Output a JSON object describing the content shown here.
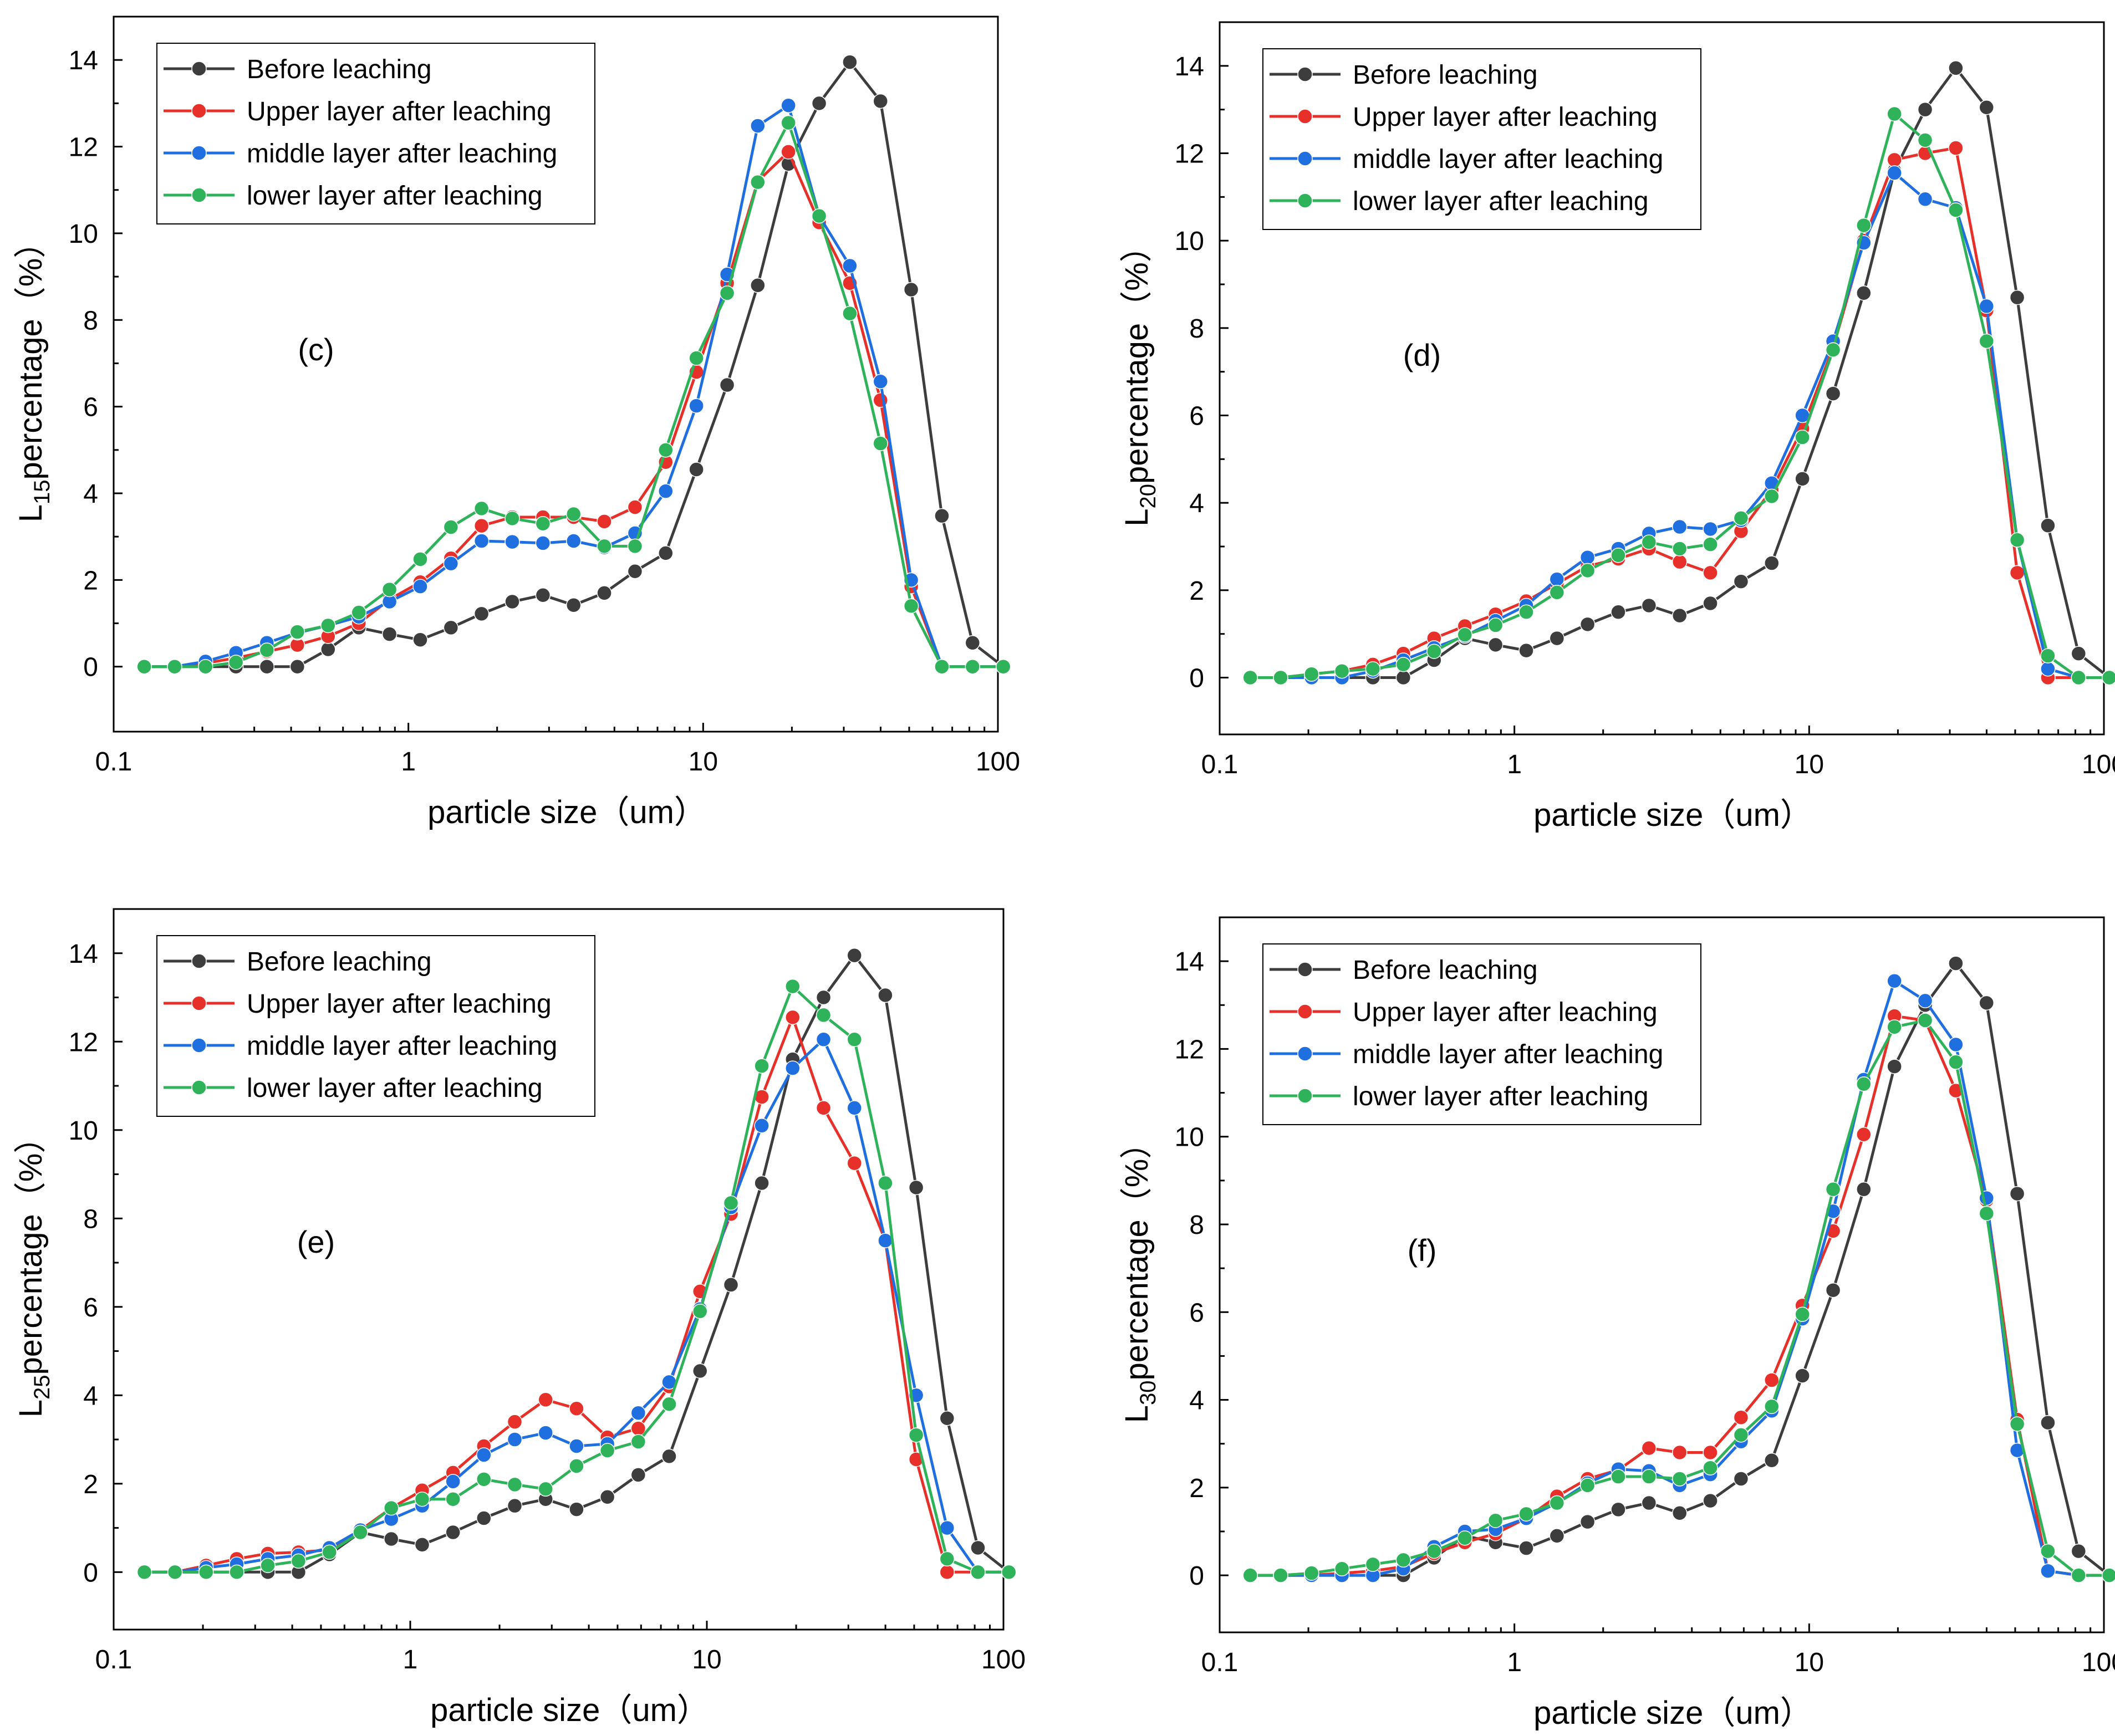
{
  "figure": {
    "colors": {
      "before": "#3d3d3d",
      "upper": "#e8302a",
      "middle": "#1f6fe0",
      "lower": "#2fb35a"
    }
  },
  "chart_data": [
    {
      "type": "line",
      "panel_label": "(c)",
      "ylabel_prefix": "L",
      "ylabel_sub": "15",
      "ylabel_suffix": "percentage（%）",
      "xlabel": "particle size（um）",
      "xscale": "log",
      "xlim": [
        0.1,
        100
      ],
      "ylim": [
        -1.5,
        15
      ],
      "xticks": [
        0.1,
        1,
        10,
        100
      ],
      "xtick_labels": [
        "0.1",
        "1",
        "10",
        "100"
      ],
      "yticks": [
        0,
        2,
        4,
        6,
        8,
        10,
        12,
        14
      ],
      "ytick_labels": [
        "0",
        "2",
        "4",
        "6",
        "8",
        "10",
        "12",
        "14"
      ],
      "legend_position": "top-left",
      "x": [
        0.127,
        0.161,
        0.205,
        0.26,
        0.331,
        0.42,
        0.534,
        0.679,
        0.863,
        1.097,
        1.394,
        1.771,
        2.251,
        2.861,
        3.636,
        4.621,
        5.873,
        7.464,
        9.486,
        12.06,
        15.32,
        19.47,
        24.75,
        31.45,
        39.97,
        50.8,
        64.56,
        82.04,
        104.3
      ],
      "series": [
        {
          "name": "Before leaching",
          "color_key": "before",
          "values": [
            0,
            0,
            0,
            0,
            0,
            0,
            0.4,
            0.9,
            0.75,
            0.62,
            0.9,
            1.22,
            1.5,
            1.65,
            1.42,
            1.7,
            2.2,
            2.62,
            4.55,
            6.5,
            8.8,
            11.6,
            13.0,
            13.95,
            13.05,
            8.7,
            3.48,
            0.55,
            0
          ]
        },
        {
          "name": "Upper layer after leaching",
          "color_key": "upper",
          "values": [
            0,
            0,
            0.08,
            0.2,
            0.35,
            0.5,
            0.7,
            1.0,
            1.55,
            1.95,
            2.5,
            3.25,
            3.45,
            3.45,
            3.45,
            3.35,
            3.68,
            4.72,
            6.8,
            8.85,
            11.2,
            11.88,
            10.25,
            8.85,
            6.15,
            1.85,
            0,
            0,
            0
          ]
        },
        {
          "name": "middle layer after leaching",
          "color_key": "middle",
          "values": [
            0,
            0,
            0.12,
            0.32,
            0.55,
            0.78,
            0.95,
            1.15,
            1.5,
            1.85,
            2.38,
            2.9,
            2.88,
            2.85,
            2.9,
            2.75,
            3.08,
            4.05,
            6.02,
            9.05,
            12.48,
            12.95,
            10.4,
            9.25,
            6.58,
            2.0,
            0,
            0,
            0
          ]
        },
        {
          "name": "lower layer after leaching",
          "color_key": "lower",
          "values": [
            0,
            0,
            0,
            0.1,
            0.38,
            0.8,
            0.95,
            1.25,
            1.78,
            2.48,
            3.22,
            3.65,
            3.42,
            3.3,
            3.52,
            2.78,
            2.78,
            5.0,
            7.12,
            8.62,
            11.18,
            12.55,
            10.4,
            8.15,
            5.15,
            1.4,
            0,
            0,
            0
          ]
        }
      ]
    },
    {
      "type": "line",
      "panel_label": "(d)",
      "ylabel_prefix": "L",
      "ylabel_sub": "20",
      "ylabel_suffix": "percentage（%）",
      "xlabel": "particle size（um）",
      "xscale": "log",
      "xlim": [
        0.1,
        100
      ],
      "ylim": [
        -1.3,
        15
      ],
      "xticks": [
        0.1,
        1,
        10,
        100
      ],
      "xtick_labels": [
        "0.1",
        "1",
        "10",
        "100"
      ],
      "yticks": [
        0,
        2,
        4,
        6,
        8,
        10,
        12,
        14
      ],
      "ytick_labels": [
        "0",
        "2",
        "4",
        "6",
        "8",
        "10",
        "12",
        "14"
      ],
      "legend_position": "top-left",
      "x": [
        0.127,
        0.161,
        0.205,
        0.26,
        0.331,
        0.42,
        0.534,
        0.679,
        0.863,
        1.097,
        1.394,
        1.771,
        2.251,
        2.861,
        3.636,
        4.621,
        5.873,
        7.464,
        9.486,
        12.06,
        15.32,
        19.47,
        24.75,
        31.45,
        39.97,
        50.8,
        64.56,
        82.04,
        104.3
      ],
      "series": [
        {
          "name": "Before leaching",
          "color_key": "before",
          "values": [
            0,
            0,
            0,
            0,
            0,
            0,
            0.4,
            0.9,
            0.75,
            0.62,
            0.9,
            1.22,
            1.5,
            1.65,
            1.42,
            1.7,
            2.2,
            2.62,
            4.55,
            6.5,
            8.8,
            11.6,
            13.0,
            13.95,
            13.05,
            8.7,
            3.48,
            0.55,
            0
          ]
        },
        {
          "name": "Upper layer after leaching",
          "color_key": "upper",
          "values": [
            0,
            0,
            0.08,
            0.15,
            0.3,
            0.55,
            0.9,
            1.18,
            1.45,
            1.75,
            2.15,
            2.55,
            2.72,
            2.95,
            2.65,
            2.4,
            3.35,
            4.3,
            5.7,
            7.55,
            10.0,
            11.85,
            12.0,
            12.12,
            8.4,
            2.4,
            0,
            0,
            0
          ]
        },
        {
          "name": "middle layer after leaching",
          "color_key": "middle",
          "values": [
            0,
            0,
            0,
            0,
            0.15,
            0.4,
            0.68,
            0.95,
            1.3,
            1.65,
            2.25,
            2.75,
            2.95,
            3.3,
            3.45,
            3.4,
            3.6,
            4.45,
            6.0,
            7.7,
            9.95,
            11.55,
            10.95,
            10.75,
            8.5,
            3.15,
            0.2,
            0,
            0
          ]
        },
        {
          "name": "lower layer after leaching",
          "color_key": "lower",
          "values": [
            0,
            0,
            0.08,
            0.15,
            0.2,
            0.3,
            0.6,
            0.98,
            1.2,
            1.5,
            1.95,
            2.45,
            2.8,
            3.1,
            2.95,
            3.05,
            3.65,
            4.15,
            5.5,
            7.5,
            10.35,
            12.9,
            12.3,
            10.7,
            7.7,
            3.15,
            0.5,
            0,
            0
          ]
        }
      ]
    },
    {
      "type": "line",
      "panel_label": "(e)",
      "ylabel_prefix": "L",
      "ylabel_sub": "25",
      "ylabel_suffix": "percentage（%）",
      "xlabel": "particle size（um）",
      "xscale": "log",
      "xlim": [
        0.1,
        100
      ],
      "ylim": [
        -1.3,
        15
      ],
      "xticks": [
        0.1,
        1,
        10,
        100
      ],
      "xtick_labels": [
        "0.1",
        "1",
        "10",
        "100"
      ],
      "yticks": [
        0,
        2,
        4,
        6,
        8,
        10,
        12,
        14
      ],
      "ytick_labels": [
        "0",
        "2",
        "4",
        "6",
        "8",
        "10",
        "12",
        "14"
      ],
      "legend_position": "top-left",
      "x": [
        0.127,
        0.161,
        0.205,
        0.26,
        0.331,
        0.42,
        0.534,
        0.679,
        0.863,
        1.097,
        1.394,
        1.771,
        2.251,
        2.861,
        3.636,
        4.621,
        5.873,
        7.464,
        9.486,
        12.06,
        15.32,
        19.47,
        24.75,
        31.45,
        39.97,
        50.8,
        64.56,
        82.04,
        104.3
      ],
      "series": [
        {
          "name": "Before leaching",
          "color_key": "before",
          "values": [
            0,
            0,
            0,
            0,
            0,
            0,
            0.4,
            0.9,
            0.75,
            0.62,
            0.9,
            1.22,
            1.5,
            1.65,
            1.42,
            1.7,
            2.2,
            2.62,
            4.55,
            6.5,
            8.8,
            11.6,
            13.0,
            13.95,
            13.05,
            8.7,
            3.48,
            0.55,
            0
          ]
        },
        {
          "name": "Upper layer after leaching",
          "color_key": "upper",
          "values": [
            0,
            0,
            0.15,
            0.3,
            0.42,
            0.45,
            0.5,
            0.95,
            1.45,
            1.85,
            2.25,
            2.85,
            3.4,
            3.9,
            3.7,
            3.05,
            3.25,
            4.2,
            6.35,
            8.1,
            10.75,
            12.55,
            10.5,
            9.25,
            7.5,
            2.55,
            0,
            0,
            0
          ]
        },
        {
          "name": "middle layer after leaching",
          "color_key": "middle",
          "values": [
            0,
            0,
            0.1,
            0.18,
            0.3,
            0.38,
            0.55,
            0.95,
            1.2,
            1.5,
            2.05,
            2.65,
            3.0,
            3.15,
            2.85,
            2.9,
            3.6,
            4.3,
            5.95,
            8.25,
            10.1,
            11.4,
            12.05,
            10.5,
            7.5,
            4.0,
            1.0,
            0,
            0
          ]
        },
        {
          "name": "lower layer after leaching",
          "color_key": "lower",
          "values": [
            0,
            0,
            0,
            0,
            0.15,
            0.25,
            0.45,
            0.9,
            1.45,
            1.65,
            1.65,
            2.1,
            1.98,
            1.88,
            2.4,
            2.75,
            2.95,
            3.8,
            5.9,
            8.35,
            11.45,
            13.25,
            12.6,
            12.05,
            8.8,
            3.1,
            0.3,
            0,
            0
          ]
        }
      ]
    },
    {
      "type": "line",
      "panel_label": "(f)",
      "ylabel_prefix": "L",
      "ylabel_sub": "30",
      "ylabel_suffix": "percentage（%）",
      "xlabel": "particle size（um）",
      "xscale": "log",
      "xlim": [
        0.1,
        100
      ],
      "ylim": [
        -1.3,
        15
      ],
      "xticks": [
        0.1,
        1,
        10,
        100
      ],
      "xtick_labels": [
        "0.1",
        "1",
        "10",
        "100"
      ],
      "yticks": [
        0,
        2,
        4,
        6,
        8,
        10,
        12,
        14
      ],
      "ytick_labels": [
        "0",
        "2",
        "4",
        "6",
        "8",
        "10",
        "12",
        "14"
      ],
      "legend_position": "top-left",
      "x": [
        0.127,
        0.161,
        0.205,
        0.26,
        0.331,
        0.42,
        0.534,
        0.679,
        0.863,
        1.097,
        1.394,
        1.771,
        2.251,
        2.861,
        3.636,
        4.621,
        5.873,
        7.464,
        9.486,
        12.06,
        15.32,
        19.47,
        24.75,
        31.45,
        39.97,
        50.8,
        64.56,
        82.04,
        104.3
      ],
      "series": [
        {
          "name": "Before leaching",
          "color_key": "before",
          "values": [
            0,
            0,
            0,
            0,
            0,
            0,
            0.4,
            0.9,
            0.75,
            0.62,
            0.9,
            1.22,
            1.5,
            1.65,
            1.42,
            1.7,
            2.2,
            2.62,
            4.55,
            6.5,
            8.8,
            11.6,
            13.0,
            13.95,
            13.05,
            8.7,
            3.48,
            0.55,
            0
          ]
        },
        {
          "name": "Upper layer after leaching",
          "color_key": "upper",
          "values": [
            0,
            0,
            0,
            0.05,
            0.1,
            0.2,
            0.5,
            0.75,
            0.95,
            1.3,
            1.8,
            2.2,
            2.4,
            2.9,
            2.8,
            2.8,
            3.6,
            4.45,
            6.15,
            7.85,
            10.05,
            12.75,
            12.65,
            11.05,
            8.55,
            3.55,
            0.1,
            0,
            0
          ]
        },
        {
          "name": "middle layer after leaching",
          "color_key": "middle",
          "values": [
            0,
            0,
            0,
            0,
            0,
            0.15,
            0.65,
            1.0,
            1.05,
            1.3,
            1.65,
            2.1,
            2.42,
            2.38,
            2.05,
            2.3,
            3.05,
            3.75,
            5.85,
            8.3,
            11.3,
            13.55,
            13.1,
            12.1,
            8.6,
            2.85,
            0.1,
            0,
            0
          ]
        },
        {
          "name": "lower layer after leaching",
          "color_key": "lower",
          "values": [
            0,
            0,
            0.05,
            0.15,
            0.25,
            0.35,
            0.55,
            0.85,
            1.25,
            1.4,
            1.65,
            2.05,
            2.25,
            2.25,
            2.2,
            2.45,
            3.2,
            3.85,
            5.95,
            8.8,
            11.2,
            12.5,
            12.65,
            11.7,
            8.25,
            3.45,
            0.55,
            0,
            0
          ]
        }
      ]
    }
  ]
}
